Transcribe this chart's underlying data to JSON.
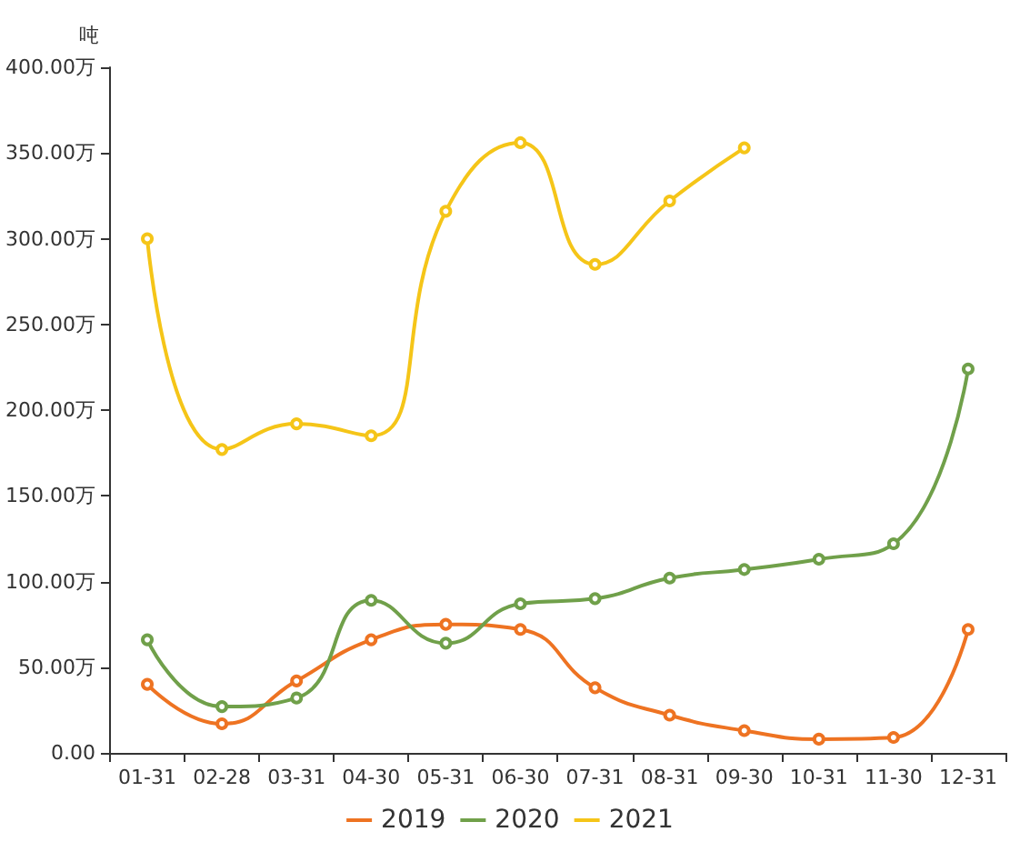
{
  "chart_data": {
    "type": "line",
    "ylabel": "吨",
    "categories": [
      "01-31",
      "02-28",
      "03-31",
      "04-30",
      "05-31",
      "06-30",
      "07-31",
      "08-31",
      "09-30",
      "10-31",
      "11-30",
      "12-31"
    ],
    "series": [
      {
        "name": "2019",
        "color": "#ee7322",
        "values": [
          40,
          17,
          42,
          66,
          75,
          72,
          38,
          22,
          13,
          8,
          9,
          72
        ]
      },
      {
        "name": "2020",
        "color": "#70a04a",
        "values": [
          66,
          27,
          32,
          89,
          64,
          87,
          90,
          102,
          107,
          113,
          122,
          224
        ]
      },
      {
        "name": "2021",
        "color": "#f5c518",
        "values": [
          300,
          177,
          192,
          185,
          316,
          356,
          285,
          322,
          353,
          null,
          null,
          null
        ]
      }
    ],
    "ylim": [
      0,
      400
    ],
    "yticks": [
      {
        "value": 0,
        "label": "0.00"
      },
      {
        "value": 50,
        "label": "50.00万"
      },
      {
        "value": 100,
        "label": "100.00万"
      },
      {
        "value": 150,
        "label": "150.00万"
      },
      {
        "value": 200,
        "label": "200.00万"
      },
      {
        "value": 250,
        "label": "250.00万"
      },
      {
        "value": 300,
        "label": "300.00万"
      },
      {
        "value": 350,
        "label": "350.00万"
      },
      {
        "value": 400,
        "label": "400.00万"
      }
    ],
    "grid": false,
    "legend": "bottom",
    "marker": "circle",
    "line_style": "solid"
  }
}
